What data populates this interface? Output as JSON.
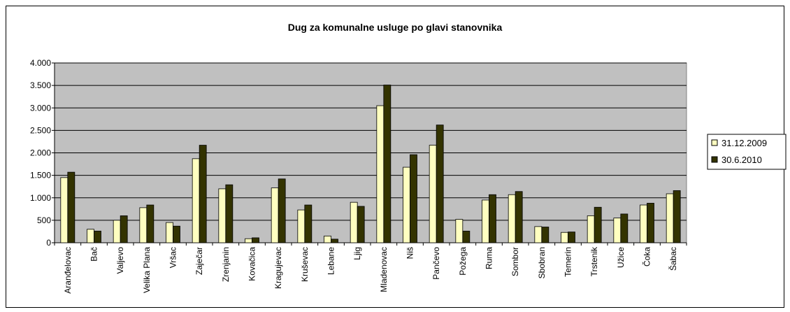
{
  "chart_data": {
    "type": "bar",
    "title": "Dug za komunalne usluge po glavi stanovnika",
    "categories": [
      "Aranđelovac",
      "Bač",
      "Valjevo",
      "Velika Plana",
      "Vršac",
      "Zaječar",
      "Zrenjanin",
      "Kovačica",
      "Kragujevac",
      "Kruševac",
      "Lebane",
      "Ljig",
      "Mladenovac",
      "Niš",
      "Pančevo",
      "Požega",
      "Ruma",
      "Sombor",
      "Sbobran",
      "Temerin",
      "Trstenik",
      "Užice",
      "Čoka",
      "Šabac"
    ],
    "series": [
      {
        "name": "31.12.2009",
        "color": "#ffffc0",
        "values": [
          1450,
          300,
          500,
          780,
          450,
          1870,
          1200,
          90,
          1220,
          730,
          150,
          900,
          3050,
          1680,
          2170,
          520,
          950,
          1070,
          360,
          230,
          600,
          550,
          840,
          1090
        ]
      },
      {
        "name": "30.6.2010",
        "color": "#333300",
        "values": [
          1570,
          260,
          600,
          840,
          370,
          2170,
          1290,
          110,
          1420,
          840,
          80,
          810,
          3510,
          1960,
          2620,
          260,
          1070,
          1140,
          350,
          240,
          790,
          640,
          880,
          1160
        ]
      }
    ],
    "ylim": [
      0,
      4000
    ],
    "yticks": [
      0,
      500,
      {
        "value": 1000,
        "label": "1.000"
      },
      {
        "value": 1500,
        "label": "1.500"
      },
      {
        "value": 2000,
        "label": "2.000"
      },
      {
        "value": 2500,
        "label": "2.500"
      },
      {
        "value": 3000,
        "label": "3.000"
      },
      {
        "value": 3500,
        "label": "3.500"
      },
      {
        "value": 4000,
        "label": "4.000"
      }
    ],
    "grid": true,
    "legend": "right",
    "plot_background": "#c0c0c0"
  }
}
